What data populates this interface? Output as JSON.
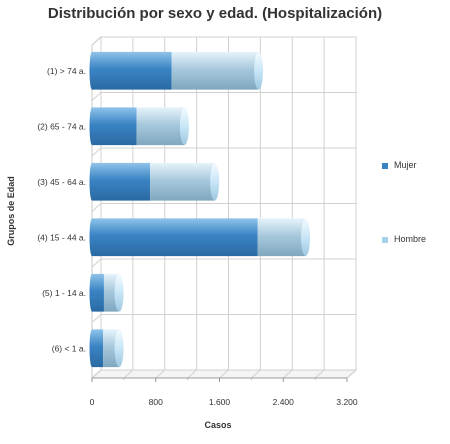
{
  "chart_data": {
    "type": "bar",
    "orientation": "horizontal",
    "stacked": true,
    "title": "Distribución por sexo y edad. (Hospitalización)",
    "xlabel": "Casos",
    "ylabel": "Grupos de Edad",
    "categories": [
      "(1) > 74 a.",
      "(2) 65 - 74 a.",
      "(3) 45 - 64 a.",
      "(4) 15 - 44 a.",
      "(5) 1 - 14 a.",
      "(6) < 1 a."
    ],
    "series": [
      {
        "name": "Mujer",
        "values": [
          1000,
          560,
          730,
          2080,
          150,
          140
        ],
        "color": "#3a84c4"
      },
      {
        "name": "Hombre",
        "values": [
          1090,
          600,
          810,
          600,
          190,
          200
        ],
        "color": "#a8d2ec"
      }
    ],
    "xlim": [
      0,
      3200
    ],
    "xticks": [
      0,
      800,
      1600,
      2400,
      3200
    ],
    "xtick_labels": [
      "0",
      "800",
      "1.600",
      "2.400",
      "3.200"
    ],
    "grid": true,
    "legend_position": "right"
  }
}
